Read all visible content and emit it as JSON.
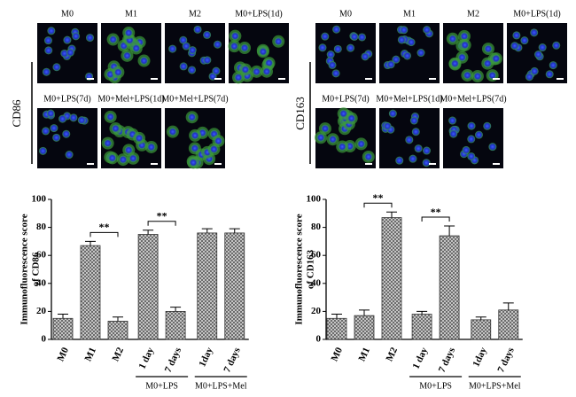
{
  "panels": [
    {
      "marker": "CD86",
      "labels": [
        "M0",
        "M1",
        "M2",
        "M0+LPS(1d)",
        "M0+LPS(7d)",
        "M0+Mel+LPS(1d)",
        "M0+Mel+LPS(7d)"
      ]
    },
    {
      "marker": "CD163",
      "labels": [
        "M0",
        "M1",
        "M2",
        "M0+LPS(1d)",
        "M0+LPS(7d)",
        "M0+Mel+LPS(1d)",
        "M0+Mel+LPS(7d)"
      ]
    }
  ],
  "chart_data": [
    {
      "type": "bar",
      "ylabel": [
        "Immunofluorescence score",
        "of CD86"
      ],
      "categories": [
        "M0",
        "M1",
        "M2",
        "1 day",
        "7 days",
        "1day",
        "7 days"
      ],
      "values": [
        15,
        67,
        13,
        75,
        20,
        76,
        76
      ],
      "errors": [
        3,
        3,
        3,
        3,
        3,
        3,
        3
      ],
      "color": "#555555",
      "ylim": [
        0,
        100
      ],
      "yticks": [
        0,
        20,
        40,
        60,
        80,
        100
      ],
      "group_labels": [
        "M0+LPS",
        "M0+LPS+Mel"
      ],
      "annotations": [
        "**",
        "**"
      ]
    },
    {
      "type": "bar",
      "ylabel": [
        "Immunofluorescence score",
        "of CD163"
      ],
      "categories": [
        "M0",
        "M1",
        "M2",
        "1 day",
        "7 days",
        "1day",
        "7 days"
      ],
      "values": [
        15,
        17,
        87,
        18,
        74,
        14,
        21
      ],
      "errors": [
        3,
        4,
        4,
        2,
        7,
        2,
        5
      ],
      "color": "#555555",
      "ylim": [
        0,
        100
      ],
      "yticks": [
        0,
        20,
        40,
        60,
        80,
        100
      ],
      "group_labels": [
        "M0+LPS",
        "M0+LPS+Mel"
      ],
      "annotations": [
        "**",
        "**"
      ]
    }
  ]
}
